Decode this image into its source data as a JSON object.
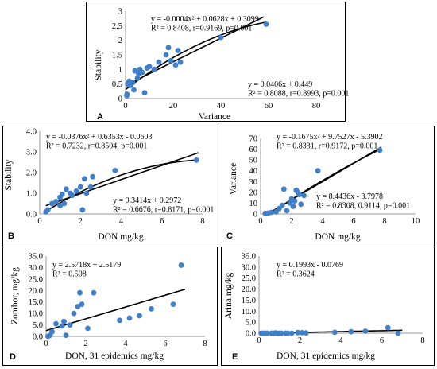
{
  "colors": {
    "point": "#3f7fc9",
    "line": "#000000",
    "axis": "#999999"
  },
  "chart_data": [
    {
      "id": "A",
      "type": "scatter",
      "xlabel": "Variance",
      "ylabel": "Stability",
      "xlim": [
        0,
        80
      ],
      "ylim": [
        0,
        3
      ],
      "xticks": [
        "0",
        "20",
        "40",
        "60",
        "80"
      ],
      "yticks": [
        "0",
        "0.5",
        "1",
        "1.5",
        "2",
        "2.5",
        "3"
      ],
      "equations": [
        [
          "y = -0.0004x² + 0.0628x + 0.3099",
          "R² = 0.8408, r=0.9169, p=0.001"
        ],
        [
          "y = 0.0406x + 0.449",
          "R² = 0.8088, r=0.8993, p=0.001"
        ]
      ],
      "points": [
        [
          0.5,
          0.1
        ],
        [
          0.6,
          0.15
        ],
        [
          1,
          0.5
        ],
        [
          1.5,
          0.6
        ],
        [
          2,
          0.45
        ],
        [
          3,
          0.55
        ],
        [
          3.5,
          0.3
        ],
        [
          4,
          0.95
        ],
        [
          5,
          0.7
        ],
        [
          5.5,
          0.85
        ],
        [
          6,
          1.0
        ],
        [
          7,
          0.9
        ],
        [
          8,
          0.2
        ],
        [
          9,
          1.05
        ],
        [
          10,
          1.1
        ],
        [
          12,
          1.0
        ],
        [
          14,
          1.25
        ],
        [
          17,
          1.5
        ],
        [
          18,
          1.75
        ],
        [
          19,
          1.3
        ],
        [
          21,
          1.15
        ],
        [
          22,
          1.65
        ],
        [
          23,
          1.25
        ],
        [
          40,
          2.1
        ],
        [
          59,
          2.55
        ]
      ],
      "fits": [
        {
          "kind": "poly2",
          "coef": [
            -0.0004,
            0.0628,
            0.3099
          ],
          "range": [
            0,
            59
          ]
        },
        {
          "kind": "linear",
          "coef": [
            0.0406,
            0.449
          ],
          "range": [
            0,
            58
          ]
        }
      ]
    },
    {
      "id": "B",
      "type": "scatter",
      "xlabel": "DON mg/kg",
      "ylabel": "Stability",
      "xlim": [
        0,
        8
      ],
      "ylim": [
        0,
        4
      ],
      "xticks": [
        "0",
        "2",
        "4",
        "6",
        "8"
      ],
      "yticks": [
        "0.0",
        "1.0",
        "2.0",
        "3.0",
        "4.0"
      ],
      "equations": [
        [
          "y = -0.0376x² + 0.6353x - 0.0603",
          "R² = 0.7232, r=0.8504, p=0.001"
        ],
        [
          "y = 0.3414x + 0.2972",
          "R² = 0.6676, r=0.8171, p=0.001"
        ]
      ],
      "points": [
        [
          0.3,
          0.1
        ],
        [
          0.4,
          0.2
        ],
        [
          0.6,
          0.5
        ],
        [
          0.8,
          0.6
        ],
        [
          1.0,
          0.4
        ],
        [
          1.0,
          0.8
        ],
        [
          1.1,
          0.95
        ],
        [
          1.2,
          0.5
        ],
        [
          1.3,
          1.2
        ],
        [
          1.5,
          1.0
        ],
        [
          1.6,
          0.9
        ],
        [
          1.8,
          1.1
        ],
        [
          2.0,
          1.3
        ],
        [
          2.1,
          0.2
        ],
        [
          2.2,
          1.7
        ],
        [
          2.3,
          1.0
        ],
        [
          2.5,
          1.3
        ],
        [
          2.6,
          1.8
        ],
        [
          3.7,
          2.1
        ],
        [
          7.7,
          2.6
        ]
      ],
      "fits": [
        {
          "kind": "poly2",
          "coef": [
            -0.0376,
            0.6353,
            -0.0603
          ],
          "range": [
            0.3,
            7.8
          ]
        },
        {
          "kind": "linear",
          "coef": [
            0.3414,
            0.2972
          ],
          "range": [
            0.3,
            7.8
          ]
        }
      ]
    },
    {
      "id": "C",
      "type": "scatter",
      "xlabel": "DON mg/kg",
      "ylabel": "Variance",
      "xlim": [
        0,
        10
      ],
      "ylim": [
        0,
        70
      ],
      "xticks": [
        "0",
        "2",
        "4",
        "6",
        "8",
        "10"
      ],
      "yticks": [
        "0",
        "10",
        "20",
        "30",
        "40",
        "50",
        "60",
        "70"
      ],
      "equations": [
        [
          "y = -0.1675x² + 9.7527x - 5.3902",
          "R² = 0.8331, r=0.9172, p=0.001"
        ],
        [
          "y = 8.4436x - 3.7978",
          "R² = 0.8308, 0.9114, p=0.001"
        ]
      ],
      "points": [
        [
          0.3,
          0.5
        ],
        [
          0.5,
          0.8
        ],
        [
          0.7,
          1.5
        ],
        [
          1.0,
          2.0
        ],
        [
          1.2,
          5
        ],
        [
          1.4,
          8
        ],
        [
          1.5,
          23
        ],
        [
          1.7,
          3
        ],
        [
          1.9,
          10
        ],
        [
          2.0,
          14
        ],
        [
          2.1,
          7
        ],
        [
          2.2,
          12
        ],
        [
          2.3,
          22
        ],
        [
          2.4,
          20
        ],
        [
          2.5,
          18
        ],
        [
          2.6,
          9
        ],
        [
          2.8,
          17
        ],
        [
          3.7,
          40
        ],
        [
          7.7,
          59
        ]
      ],
      "fits": [
        {
          "kind": "poly2",
          "coef": [
            -0.1675,
            9.7527,
            -5.3902
          ],
          "range": [
            0.5,
            7.8
          ]
        },
        {
          "kind": "linear",
          "coef": [
            8.4436,
            -3.7978
          ],
          "range": [
            0.5,
            7.8
          ]
        }
      ]
    },
    {
      "id": "D",
      "type": "scatter",
      "xlabel": "DON, 31 epidemics mg/kg",
      "ylabel": "Zombor, mg/kg",
      "xlim": [
        0,
        8
      ],
      "ylim": [
        0,
        35
      ],
      "xticks": [
        "0",
        "2",
        "4",
        "6",
        "8"
      ],
      "yticks": [
        "0.0",
        "5.0",
        "10.0",
        "15.0",
        "20.0",
        "25.0",
        "30.0",
        "35.0"
      ],
      "equations": [
        [
          "y = 2.5718x + 2.5179",
          "R² = 0.508"
        ]
      ],
      "points": [
        [
          0.1,
          0
        ],
        [
          0.2,
          0.5
        ],
        [
          0.3,
          2
        ],
        [
          0.5,
          5.5
        ],
        [
          0.8,
          4.5
        ],
        [
          0.9,
          6.5
        ],
        [
          1.0,
          0.5
        ],
        [
          1.2,
          5
        ],
        [
          1.4,
          10
        ],
        [
          1.6,
          13
        ],
        [
          1.7,
          19
        ],
        [
          1.8,
          14
        ],
        [
          2.1,
          3.5
        ],
        [
          2.4,
          19
        ],
        [
          3.7,
          7
        ],
        [
          4.2,
          8
        ],
        [
          4.7,
          9
        ],
        [
          5.3,
          12
        ],
        [
          6.4,
          14
        ],
        [
          6.8,
          31
        ]
      ],
      "fits": [
        {
          "kind": "linear",
          "coef": [
            2.5718,
            2.5179
          ],
          "range": [
            0,
            7
          ]
        }
      ]
    },
    {
      "id": "E",
      "type": "scatter",
      "xlabel": "DON, 31 epidemics mg/kg",
      "ylabel": "Arina mg/kg",
      "xlim": [
        0,
        8
      ],
      "ylim": [
        0,
        35
      ],
      "xticks": [
        "0",
        "2",
        "4",
        "6",
        "8"
      ],
      "yticks": [
        "0.0",
        "5.0",
        "10.0",
        "15.0",
        "20.0",
        "25.0",
        "30.0",
        "35.0"
      ],
      "equations": [
        [
          "y = 0.1993x - 0.0769",
          "R² = 0.3624"
        ]
      ],
      "points": [
        [
          0.1,
          0
        ],
        [
          0.2,
          0
        ],
        [
          0.3,
          0
        ],
        [
          0.4,
          0
        ],
        [
          0.6,
          0
        ],
        [
          0.7,
          0
        ],
        [
          0.8,
          0.1
        ],
        [
          0.9,
          0
        ],
        [
          1.0,
          0
        ],
        [
          1.1,
          0
        ],
        [
          1.3,
          0
        ],
        [
          1.4,
          0
        ],
        [
          1.6,
          0
        ],
        [
          1.9,
          0.3
        ],
        [
          2.1,
          0.2
        ],
        [
          2.3,
          0.1
        ],
        [
          3.7,
          0.4
        ],
        [
          4.5,
          0.7
        ],
        [
          5.2,
          0.9
        ],
        [
          6.3,
          2.5
        ],
        [
          6.8,
          0
        ]
      ],
      "fits": [
        {
          "kind": "linear",
          "coef": [
            0.1993,
            -0.0769
          ],
          "range": [
            0,
            7
          ]
        }
      ]
    }
  ]
}
